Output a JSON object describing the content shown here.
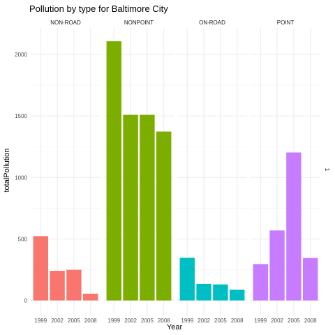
{
  "chart_data": {
    "type": "bar",
    "title": "Pollution by type for Baltimore City",
    "xlabel": "Year",
    "ylabel": "totalPollution",
    "right_label": "1",
    "categories": [
      "1999",
      "2002",
      "2005",
      "2008"
    ],
    "yticks": [
      0,
      500,
      1000,
      1500,
      2000
    ],
    "ylim": [
      0,
      2100
    ],
    "grid": true,
    "panels": [
      {
        "name": "NON-ROAD",
        "color": "#F8766D",
        "values": [
          523,
          241,
          249,
          55
        ]
      },
      {
        "name": "NONPOINT",
        "color": "#7CAE00",
        "values": [
          2107,
          1509,
          1509,
          1373
        ]
      },
      {
        "name": "ON-ROAD",
        "color": "#00BFC4",
        "values": [
          347,
          134,
          130,
          88
        ]
      },
      {
        "name": "POINT",
        "color": "#C77CFF",
        "values": [
          296,
          569,
          1203,
          345
        ]
      }
    ]
  }
}
